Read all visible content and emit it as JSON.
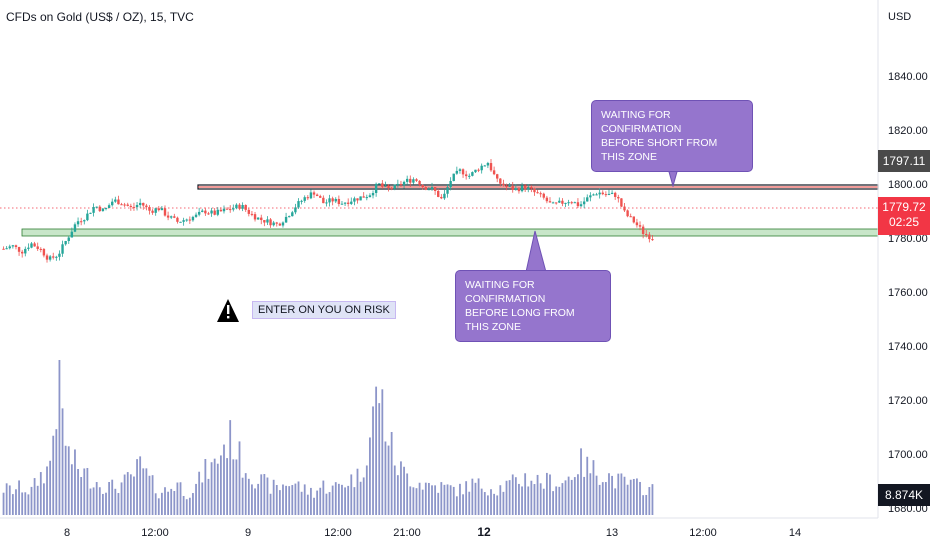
{
  "header": {
    "symbol_title": "CFDs on Gold (US$ / OZ), 15, TVC"
  },
  "price_axis": {
    "currency": "USD",
    "ticks": [
      "1840.00",
      "1820.00",
      "1800.00",
      "1780.00",
      "1760.00",
      "1740.00",
      "1720.00",
      "1700.00",
      "1680.00"
    ]
  },
  "time_axis": {
    "ticks": [
      {
        "label": "8",
        "bold": false
      },
      {
        "label": "12:00",
        "bold": false
      },
      {
        "label": "9",
        "bold": false
      },
      {
        "label": "12:00",
        "bold": false
      },
      {
        "label": "21:00",
        "bold": false
      },
      {
        "label": "12",
        "bold": true
      },
      {
        "label": "13",
        "bold": false
      },
      {
        "label": "12:00",
        "bold": false
      },
      {
        "label": "14",
        "bold": false
      }
    ]
  },
  "price_labels": {
    "resistance": {
      "value": "1797.11",
      "color": "#4a4a4a"
    },
    "last": {
      "value": "1779.72",
      "countdown": "02:25",
      "color": "#f23645"
    },
    "volume": {
      "value": "8.874K",
      "color": "#131722"
    }
  },
  "annotations": {
    "short_zone": {
      "line1": "WAITING FOR CONFIRMATION",
      "line2": "BEFORE SHORT FROM THIS ZONE"
    },
    "long_zone": {
      "line1": "WAITING FOR CONFIRMATION",
      "line2": "BEFORE LONG FROM THIS ZONE"
    },
    "risk_note": "ENTER ON YOU ON RISK"
  },
  "icons": {
    "warning": "warning-triangle-icon"
  },
  "colors": {
    "up": "#26a69a",
    "down": "#ef5350",
    "volume": "#8c95c9",
    "callout": "#9575cd",
    "zone": "#c8e6c9"
  },
  "chart_data": {
    "type": "candlestick",
    "title": "CFDs on Gold (US$ / OZ), 15, TVC",
    "ylim": [
      1670,
      1850
    ],
    "levels": {
      "resistance": 1797.11,
      "last": 1779.72,
      "support_zone": [
        1771,
        1773
      ]
    },
    "series": [
      {
        "name": "price",
        "values": [
          1776,
          1777,
          1775,
          1778,
          1776,
          1772,
          1774,
          1780,
          1786,
          1788,
          1792,
          1790,
          1794,
          1793,
          1791,
          1793,
          1790,
          1791,
          1788,
          1786,
          1787,
          1788,
          1790,
          1789,
          1790,
          1791,
          1792,
          1789,
          1787,
          1786,
          1785,
          1788,
          1792,
          1795,
          1797,
          1793,
          1794,
          1793,
          1794,
          1795,
          1796,
          1800,
          1798,
          1799,
          1801,
          1802,
          1799,
          1798,
          1794,
          1802,
          1805,
          1803,
          1806,
          1808,
          1801,
          1799,
          1798,
          1799,
          1797,
          1795,
          1792,
          1793,
          1794,
          1792,
          1795,
          1797,
          1796,
          1796,
          1789,
          1786,
          1782,
          1780
        ]
      },
      {
        "name": "volume",
        "values": [
          1.7,
          1.6,
          1.8,
          1.5,
          2.5,
          3.0,
          8.3,
          4.0,
          3.1,
          2.6,
          2.2,
          1.9,
          1.8,
          2.0,
          2.4,
          3.2,
          2.2,
          1.5,
          1.6,
          2.1,
          1.4,
          1.8,
          2.8,
          3.1,
          4.4,
          5.0,
          3.4,
          2.7,
          2.2,
          1.9,
          1.7,
          2.1,
          2.0,
          1.6,
          1.5,
          1.9,
          1.7,
          2.0,
          2.3,
          2.5,
          4.7,
          8.4,
          5.2,
          3.2,
          2.6,
          2.2,
          2.0,
          1.9,
          1.8,
          1.7,
          1.6,
          2.0,
          1.9,
          1.8,
          1.7,
          1.9,
          2.1,
          2.4,
          2.3,
          2.1,
          2.2,
          2.0,
          2.5,
          3.4,
          3.0,
          2.8,
          2.6,
          2.2,
          2.1,
          1.9,
          1.8,
          1.6
        ]
      }
    ]
  }
}
